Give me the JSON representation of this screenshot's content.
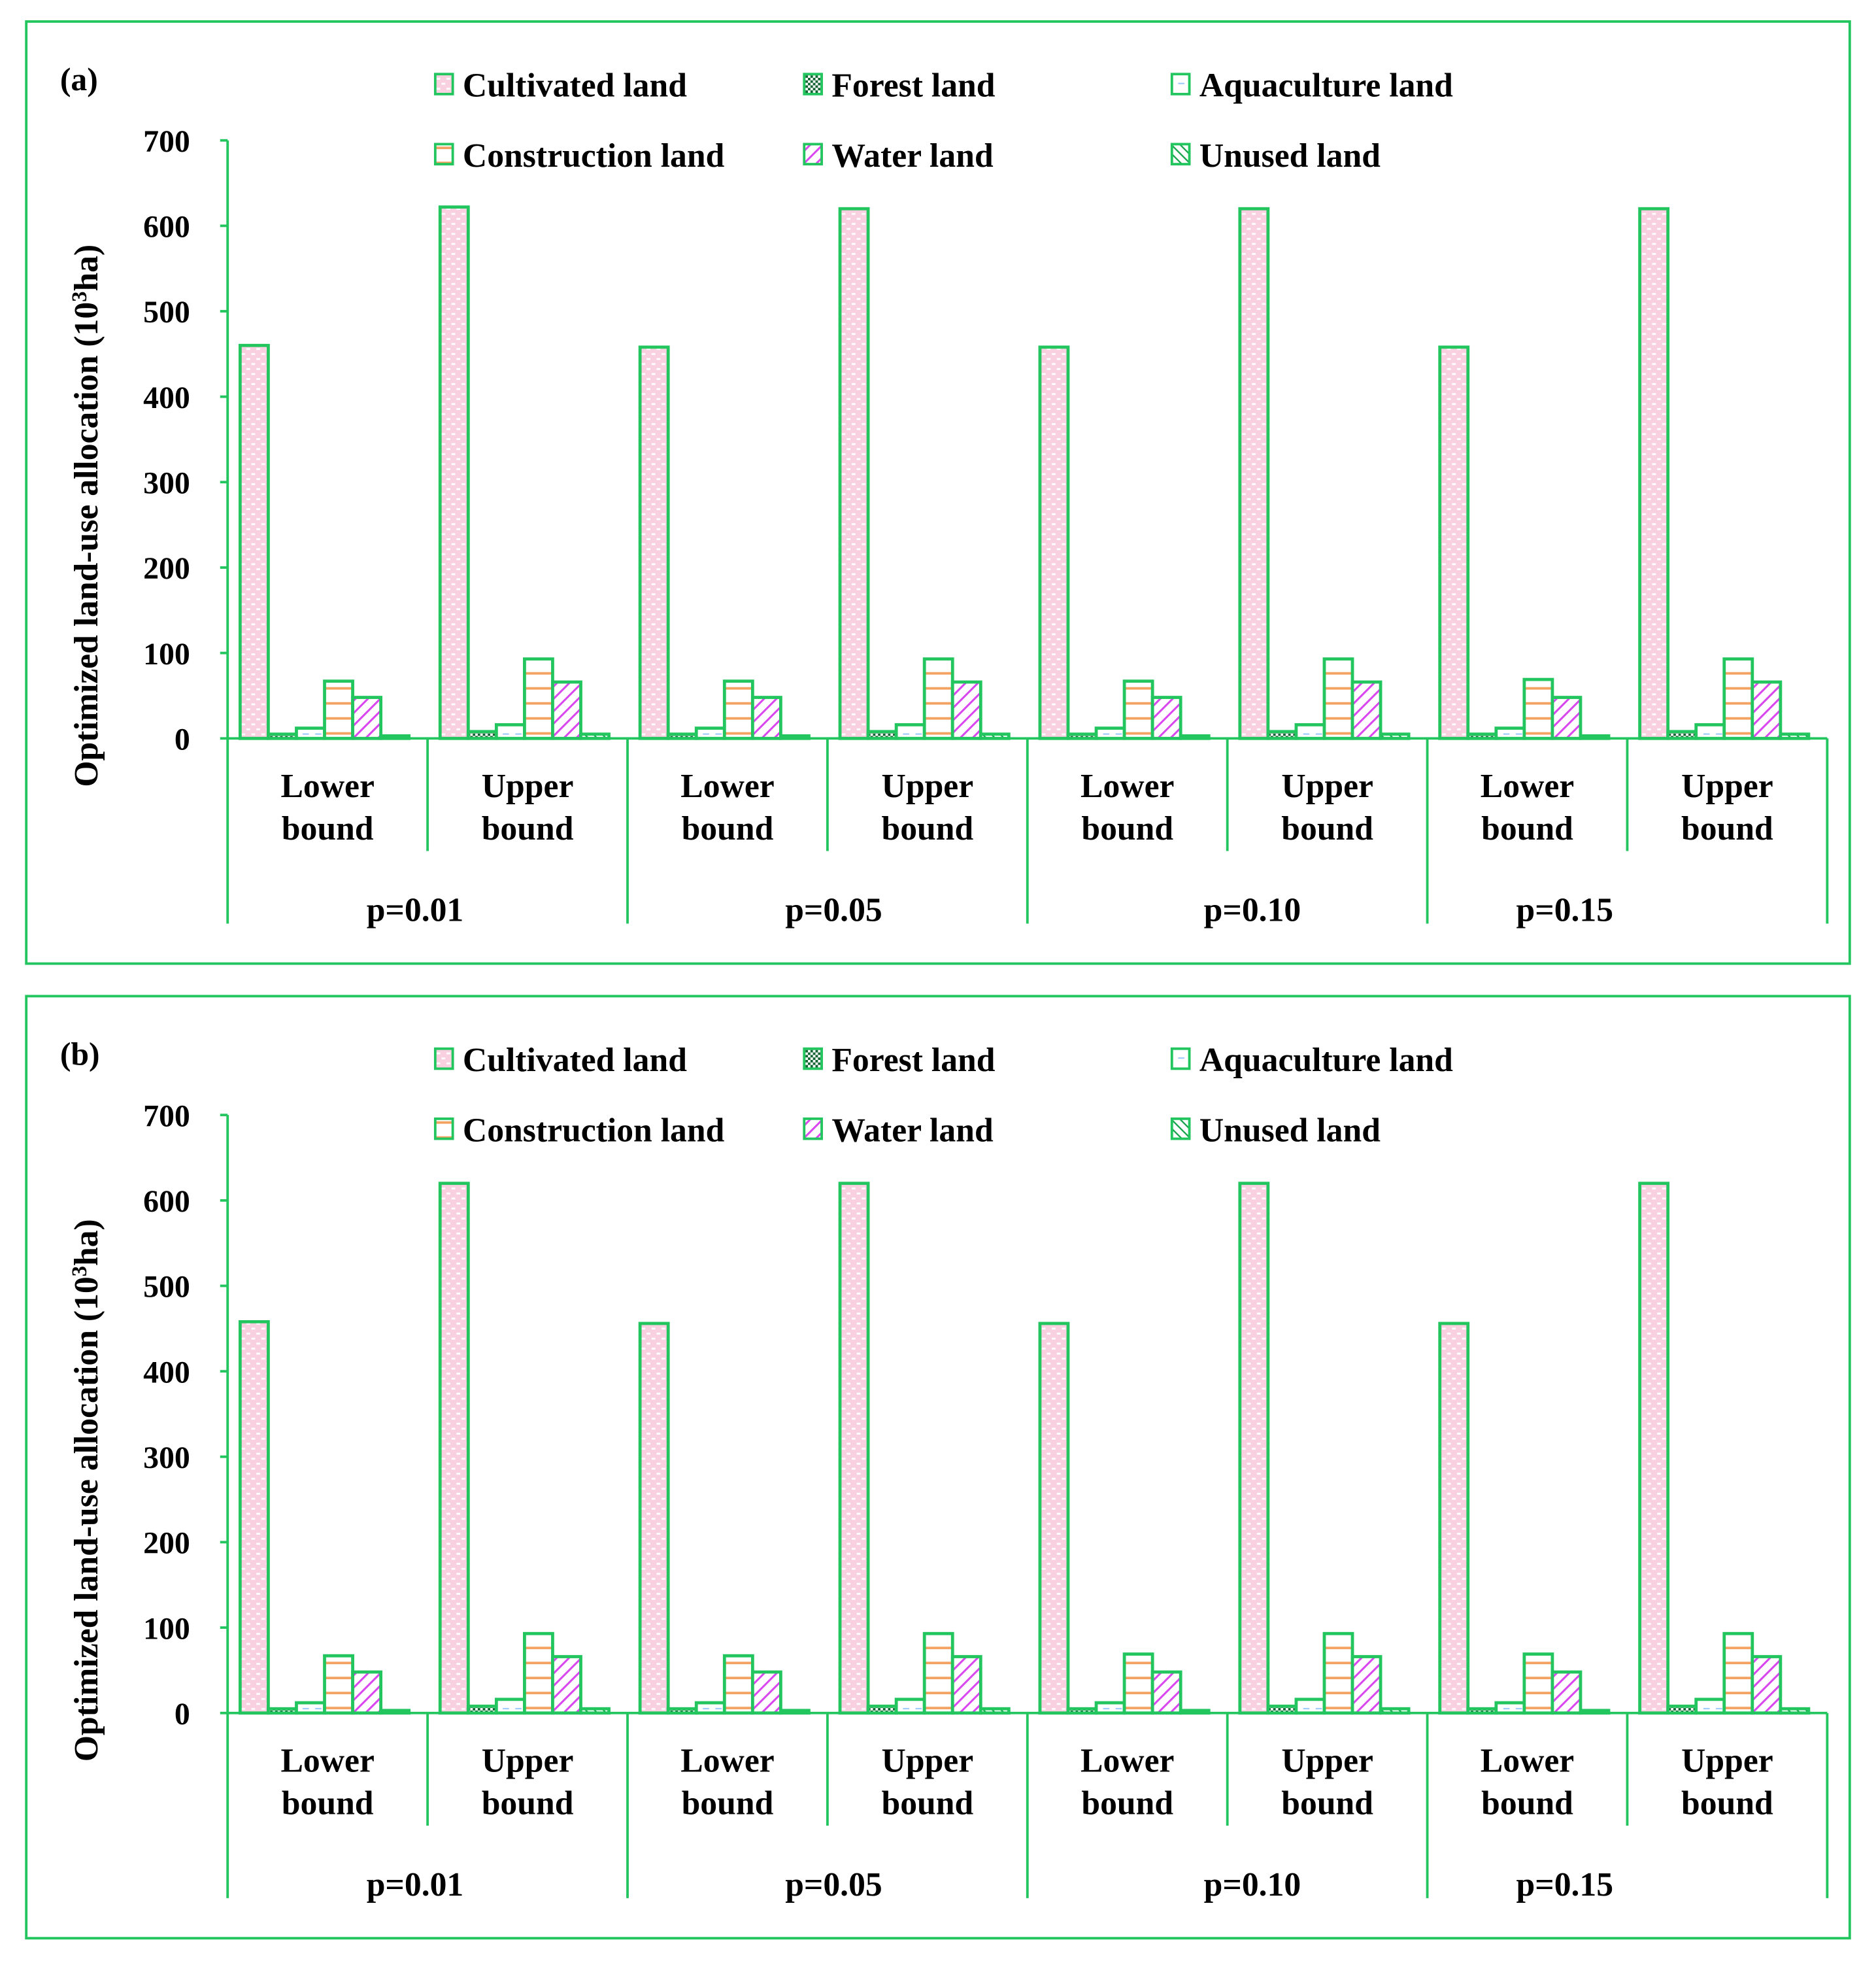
{
  "chart_data": [
    {
      "type": "bar",
      "panel_label": "(a)",
      "ylabel": "Optimized land-use allocation (10³ha)",
      "ylabel_parts": [
        "Optimized land-use allocation (10",
        "3",
        "ha)"
      ],
      "ylim": [
        0,
        700
      ],
      "yticks": [
        "0",
        "100",
        "200",
        "300",
        "400",
        "500",
        "600",
        "700"
      ],
      "group_labels": [
        "p=0.01",
        "p=0.05",
        "p=0.10",
        "p=0.15"
      ],
      "subcategories": [
        "Lower bound",
        "Upper bound"
      ],
      "sub_lines": [
        [
          "Lower",
          "bound"
        ],
        [
          "Upper",
          "bound"
        ]
      ],
      "legend_placement": "top",
      "series": [
        {
          "name": "Cultivated land",
          "values": [
            460,
            622,
            458,
            620,
            458,
            620,
            458,
            620
          ]
        },
        {
          "name": "Forest land",
          "values": [
            5,
            8,
            5,
            8,
            5,
            8,
            5,
            8
          ]
        },
        {
          "name": "Aquaculture land",
          "values": [
            12,
            16,
            12,
            16,
            12,
            16,
            12,
            16
          ]
        },
        {
          "name": "Construction land",
          "values": [
            67,
            93,
            67,
            93,
            67,
            93,
            69,
            93
          ]
        },
        {
          "name": "Water land",
          "values": [
            48,
            66,
            48,
            66,
            48,
            66,
            48,
            66
          ]
        },
        {
          "name": "Unused land",
          "values": [
            3,
            5,
            3,
            5,
            3,
            5,
            3,
            5
          ]
        }
      ]
    },
    {
      "type": "bar",
      "panel_label": "(b)",
      "ylabel": "Optimized land-use allocation (10³ha)",
      "ylabel_parts": [
        "Optimized land-use allocation (10",
        "3",
        "ha)"
      ],
      "ylim": [
        0,
        700
      ],
      "yticks": [
        "0",
        "100",
        "200",
        "300",
        "400",
        "500",
        "600",
        "700"
      ],
      "group_labels": [
        "p=0.01",
        "p=0.05",
        "p=0.10",
        "p=0.15"
      ],
      "subcategories": [
        "Lower bound",
        "Upper bound"
      ],
      "sub_lines": [
        [
          "Lower",
          "bound"
        ],
        [
          "Upper",
          "bound"
        ]
      ],
      "legend_placement": "top",
      "series": [
        {
          "name": "Cultivated land",
          "values": [
            458,
            620,
            456,
            620,
            456,
            620,
            456,
            620
          ]
        },
        {
          "name": "Forest land",
          "values": [
            5,
            8,
            5,
            8,
            5,
            8,
            5,
            8
          ]
        },
        {
          "name": "Aquaculture land",
          "values": [
            12,
            16,
            12,
            16,
            12,
            16,
            12,
            16
          ]
        },
        {
          "name": "Construction land",
          "values": [
            67,
            93,
            67,
            93,
            69,
            93,
            69,
            93
          ]
        },
        {
          "name": "Water land",
          "values": [
            48,
            66,
            48,
            66,
            48,
            66,
            48,
            66
          ]
        },
        {
          "name": "Unused land",
          "values": [
            3,
            5,
            3,
            5,
            3,
            5,
            3,
            5
          ]
        }
      ]
    }
  ],
  "colors": {
    "frame": "#22c55e",
    "axis": "#1db954",
    "cultivated": "#f9d0e0",
    "construction": "#f4a261",
    "water": "#d946ef",
    "forest": "#166534",
    "aquaculture": "#93c5fd"
  }
}
